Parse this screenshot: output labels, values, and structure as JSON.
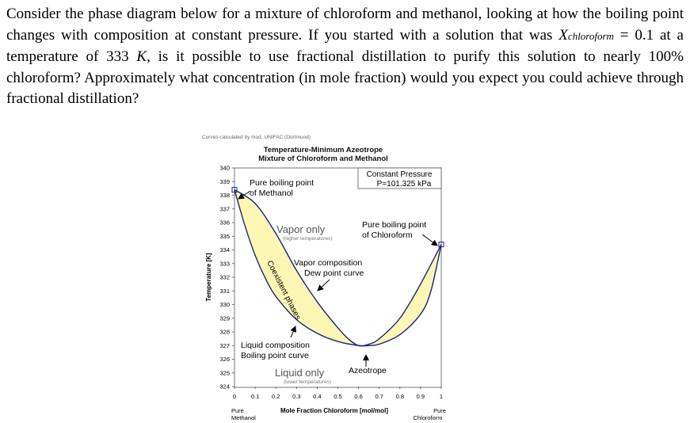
{
  "question": {
    "part1": "Consider the phase diagram below for a mixture of chloroform and methanol, looking at how the boiling point changes with composition at constant pressure. If you started with a solution that was",
    "var_symbol": "X",
    "var_subscript": "chloroform",
    "equals_text": " = 0.1 at a temperature of 333 ",
    "unit_k": "K",
    "part2": ", is it possible to use fractional distillation to purify this solution to nearly 100% chloroform? Approximately what concentration (in mole fraction) would you expect you could achieve through fractional distillation?"
  },
  "chart_data": {
    "type": "line",
    "credit": "Curves calculated by mod. UNIFAC (Dortmund)",
    "title_line1": "Temperature-Minimum Azeotrope",
    "title_line2": "Mixture of Chloroform and Methanol",
    "xlabel": "Mole Fraction Chloroform [mol/mol]",
    "ylabel": "Temperature [K]",
    "xlim": [
      0,
      1
    ],
    "ylim": [
      324,
      340
    ],
    "x_ticks": [
      "0",
      "0.1",
      "0.2",
      "0.3",
      "0.4",
      "0.5",
      "0.6",
      "0.7",
      "0.8",
      "0.9",
      "1"
    ],
    "y_ticks": [
      "324",
      "325",
      "326",
      "327",
      "328",
      "329",
      "330",
      "331",
      "332",
      "333",
      "334",
      "335",
      "336",
      "337",
      "338",
      "339",
      "340"
    ],
    "x_end_labels": {
      "left_line1": "Pure",
      "left_line2": "Methanol",
      "right_line1": "Pure",
      "right_line2": "Chloroform"
    },
    "series": [
      {
        "key": "dew",
        "x": [
          0,
          0.1,
          0.2,
          0.3,
          0.4,
          0.5,
          0.55,
          0.6,
          0.65,
          0.7,
          0.8,
          0.9,
          1.0
        ],
        "y": [
          338.4,
          337.4,
          335.2,
          332.5,
          330.2,
          328.3,
          327.5,
          327.0,
          327.1,
          327.5,
          329.0,
          331.5,
          334.4
        ]
      },
      {
        "key": "bubble",
        "x": [
          0,
          0.05,
          0.1,
          0.15,
          0.2,
          0.3,
          0.4,
          0.5,
          0.6,
          0.65,
          0.7,
          0.8,
          0.9,
          0.95,
          1.0
        ],
        "y": [
          338.4,
          335.8,
          333.6,
          331.9,
          330.6,
          328.9,
          327.9,
          327.3,
          327.0,
          327.0,
          327.1,
          327.8,
          329.3,
          331.0,
          334.4
        ]
      }
    ],
    "fill_color": "#fcf7b4",
    "line_color": "#1a237e",
    "annotations": {
      "constant_pressure_line1": "Constant Pressure",
      "constant_pressure_line2": "P=101.325 kPa",
      "methanol_bp_line1": "Pure boiling point",
      "methanol_bp_line2": "of Methanol",
      "chloroform_bp_line1": "Pure boiling point",
      "chloroform_bp_line2": "of Chloroform",
      "vapor_only": "Vapor only",
      "vapor_only_sub": "(higher temperatures)",
      "vapor_comp_line1": "Vapor composition",
      "vapor_comp_line2": "Dew point curve",
      "coexistent": "Coexistent phases",
      "liquid_comp_line1": "Liquid composition",
      "liquid_comp_line2": "Boiling point curve",
      "liquid_only": "Liquid only",
      "liquid_only_sub": "(lower temperatures)",
      "azeotrope": "Azeotrope"
    }
  }
}
